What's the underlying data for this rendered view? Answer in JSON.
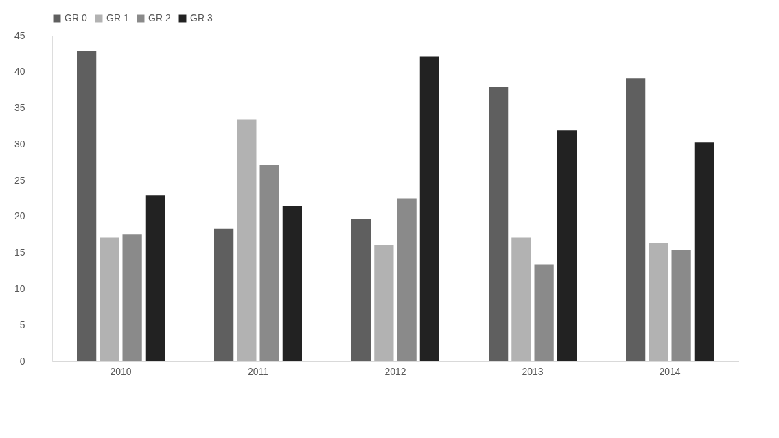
{
  "chart_data": {
    "type": "bar",
    "categories": [
      "2010",
      "2011",
      "2012",
      "2013",
      "2014"
    ],
    "series": [
      {
        "name": "GR 0",
        "color": "#5f5f5f",
        "values": [
          42.9,
          18.3,
          19.6,
          37.9,
          39.1
        ]
      },
      {
        "name": "GR 1",
        "color": "#b2b2b2",
        "values": [
          17.1,
          33.4,
          16.0,
          17.1,
          16.4
        ]
      },
      {
        "name": "GR 2",
        "color": "#8a8a8a",
        "values": [
          17.5,
          27.1,
          22.5,
          13.4,
          15.4
        ]
      },
      {
        "name": "GR 3",
        "color": "#222222",
        "values": [
          22.9,
          21.4,
          42.1,
          31.9,
          30.3
        ]
      }
    ],
    "ylim": [
      0,
      45
    ],
    "yticks": [
      0,
      5,
      10,
      15,
      20,
      25,
      30,
      35,
      40,
      45
    ],
    "grid": false,
    "legend": "top"
  }
}
